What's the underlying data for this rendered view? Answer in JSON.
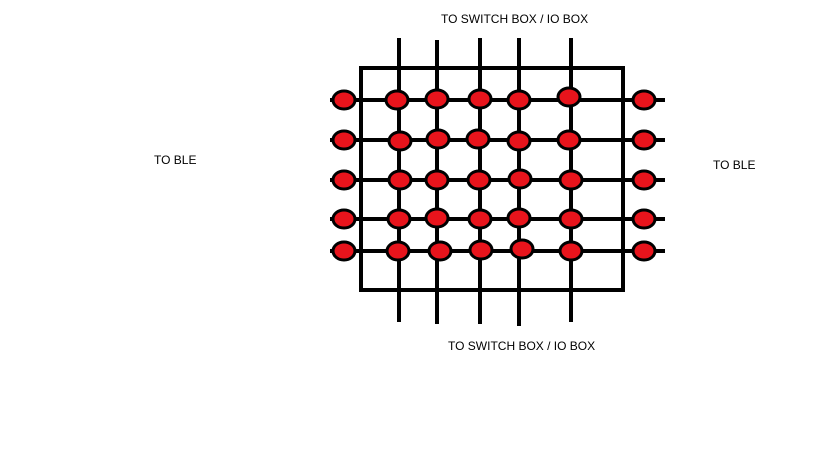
{
  "labels": {
    "top": "TO SWITCH BOX  / IO BOX",
    "bottom": "TO SWITCH BOX  / IO BOX",
    "left": "TO  BLE",
    "right": "TO BLE"
  },
  "colors": {
    "line": "#000000",
    "dot_fill": "#e8141c",
    "dot_stroke": "#000000",
    "background": "#ffffff"
  },
  "grid": {
    "vertical_wires": 5,
    "horizontal_wires": 5
  }
}
